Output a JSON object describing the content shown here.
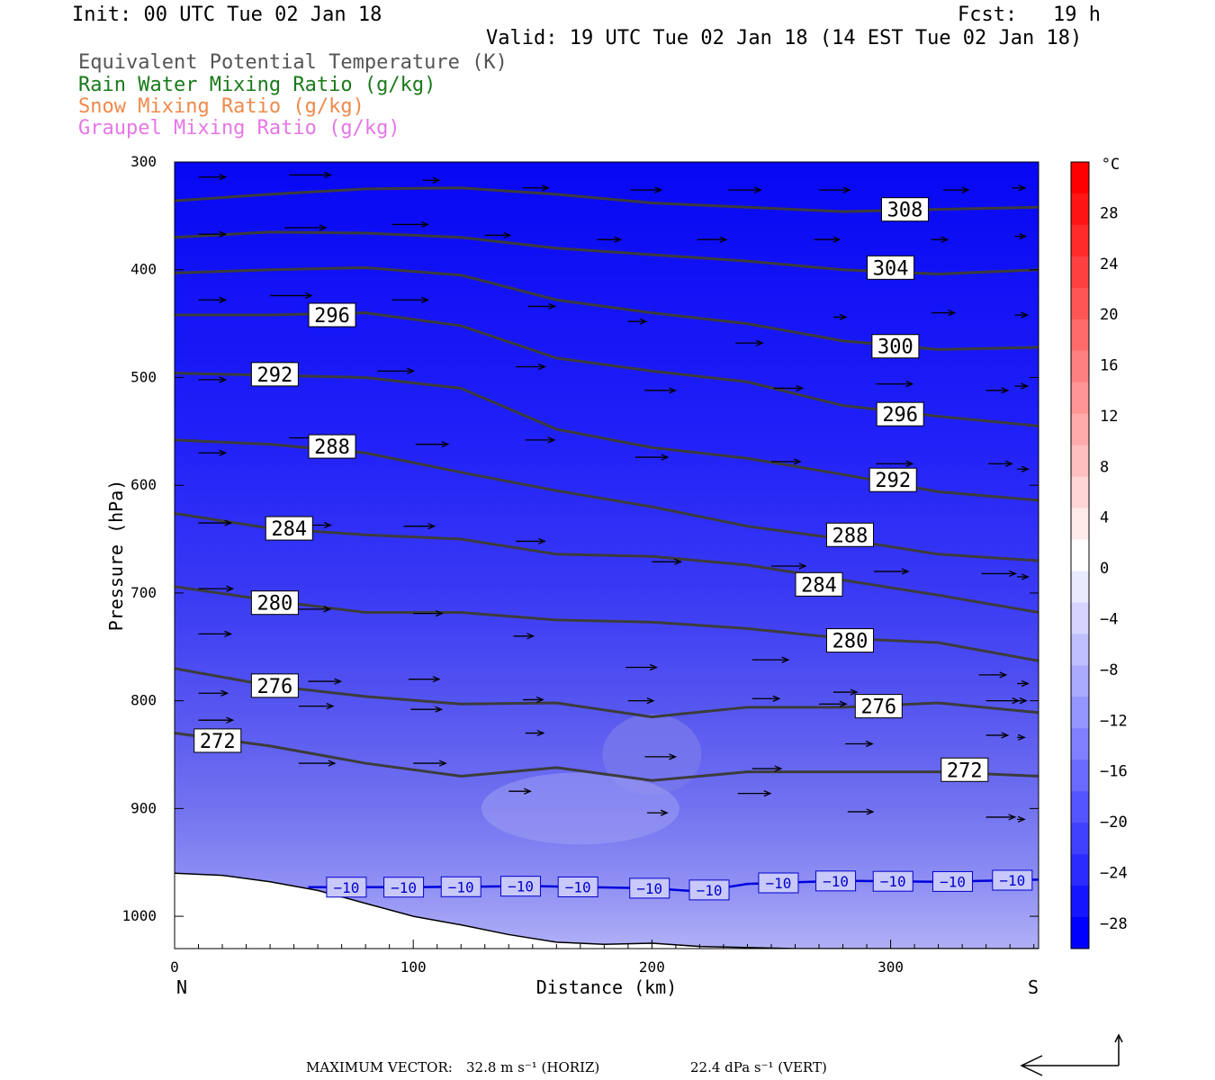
{
  "header": {
    "init": "Init: 00 UTC Tue 02 Jan 18",
    "fcst": "Fcst:   19 h",
    "valid": "Valid: 19 UTC Tue 02 Jan 18 (14 EST Tue 02 Jan 18)",
    "fields": [
      {
        "label": "Equivalent Potential Temperature (K)",
        "color": "#555555"
      },
      {
        "label": "Rain Water Mixing Ratio (g/kg)",
        "color": "#1a7a1a"
      },
      {
        "label": "Snow Mixing Ratio (g/kg)",
        "color": "#f08a4b"
      },
      {
        "label": "Graupel Mixing Ratio (g/kg)",
        "color": "#e676e6"
      }
    ]
  },
  "footer": {
    "max_vector_label": "MAXIMUM VECTOR:",
    "horiz": "32.8 m s⁻¹ (HORIZ)",
    "vert": "22.4 dPa s⁻¹ (VERT)"
  },
  "chart_data": {
    "type": "cross-section",
    "xlabel": "Distance (km)",
    "ylabel": "Pressure (hPa)",
    "xlim": [
      0,
      362
    ],
    "ylim": [
      1030,
      300
    ],
    "x_ticks": [
      0,
      100,
      200,
      300
    ],
    "y_ticks": [
      300,
      400,
      500,
      600,
      700,
      800,
      900,
      1000
    ],
    "x_end_labels": {
      "left": "N",
      "right": "S"
    },
    "colorbar": {
      "unit": "°C",
      "tick_labels": [
        "28",
        "24",
        "20",
        "16",
        "12",
        "8",
        "4",
        "0",
        "−4",
        "−8",
        "−12",
        "−16",
        "−20",
        "−24",
        "−28"
      ],
      "levels": [
        32,
        30,
        28,
        26,
        24,
        22,
        20,
        18,
        16,
        14,
        12,
        10,
        8,
        6,
        4,
        2,
        0,
        -2,
        -4,
        -6,
        -8,
        -10,
        -12,
        -14,
        -16,
        -18,
        -20,
        -22,
        -24,
        -26,
        -28,
        -30
      ],
      "colors": [
        "#ff0000",
        "#ff1515",
        "#ff2b2b",
        "#ff4040",
        "#ff5555",
        "#ff6a6a",
        "#ff8080",
        "#ff9595",
        "#ffaaaa",
        "#ffbfbf",
        "#ffd5d5",
        "#ffeaea",
        "#ffffff",
        "#eaeaff",
        "#d5d5ff",
        "#bfbfff",
        "#aaaaff",
        "#9595ff",
        "#8080ff",
        "#6a6aff",
        "#5555ff",
        "#4040ff",
        "#2b2bff",
        "#1515ff",
        "#0000ff"
      ]
    },
    "theta_e_contours": [
      {
        "value": 308,
        "points": [
          [
            0,
            336
          ],
          [
            40,
            330
          ],
          [
            80,
            325
          ],
          [
            120,
            324
          ],
          [
            160,
            330
          ],
          [
            200,
            338
          ],
          [
            240,
            342
          ],
          [
            280,
            346
          ],
          [
            320,
            344
          ],
          [
            362,
            342
          ]
        ]
      },
      {
        "value": 304,
        "points": [
          [
            0,
            370
          ],
          [
            40,
            365
          ],
          [
            80,
            366
          ],
          [
            120,
            370
          ],
          [
            160,
            380
          ],
          [
            200,
            386
          ],
          [
            240,
            392
          ],
          [
            280,
            400
          ],
          [
            320,
            404
          ],
          [
            362,
            400
          ]
        ]
      },
      {
        "value": 300,
        "points": [
          [
            0,
            403
          ],
          [
            40,
            400
          ],
          [
            80,
            398
          ],
          [
            120,
            405
          ],
          [
            160,
            428
          ],
          [
            200,
            440
          ],
          [
            240,
            450
          ],
          [
            280,
            466
          ],
          [
            320,
            474
          ],
          [
            362,
            472
          ]
        ]
      },
      {
        "value": 296,
        "points": [
          [
            0,
            442
          ],
          [
            40,
            442
          ],
          [
            80,
            440
          ],
          [
            120,
            452
          ],
          [
            160,
            482
          ],
          [
            200,
            494
          ],
          [
            240,
            504
          ],
          [
            280,
            526
          ],
          [
            320,
            536
          ],
          [
            362,
            545
          ]
        ]
      },
      {
        "value": 292,
        "points": [
          [
            0,
            496
          ],
          [
            40,
            498
          ],
          [
            80,
            500
          ],
          [
            120,
            510
          ],
          [
            160,
            548
          ],
          [
            200,
            565
          ],
          [
            240,
            575
          ],
          [
            280,
            590
          ],
          [
            320,
            606
          ],
          [
            362,
            614
          ]
        ]
      },
      {
        "value": 288,
        "points": [
          [
            0,
            558
          ],
          [
            40,
            562
          ],
          [
            80,
            570
          ],
          [
            120,
            588
          ],
          [
            160,
            605
          ],
          [
            200,
            620
          ],
          [
            240,
            638
          ],
          [
            280,
            650
          ],
          [
            320,
            664
          ],
          [
            362,
            670
          ]
        ]
      },
      {
        "value": 284,
        "points": [
          [
            0,
            626
          ],
          [
            40,
            640
          ],
          [
            80,
            646
          ],
          [
            120,
            650
          ],
          [
            160,
            664
          ],
          [
            200,
            666
          ],
          [
            240,
            674
          ],
          [
            280,
            688
          ],
          [
            320,
            702
          ],
          [
            362,
            718
          ]
        ]
      },
      {
        "value": 280,
        "points": [
          [
            0,
            694
          ],
          [
            40,
            707
          ],
          [
            80,
            718
          ],
          [
            120,
            718
          ],
          [
            160,
            725
          ],
          [
            200,
            727
          ],
          [
            240,
            733
          ],
          [
            280,
            742
          ],
          [
            320,
            746
          ],
          [
            362,
            763
          ]
        ]
      },
      {
        "value": 276,
        "points": [
          [
            0,
            770
          ],
          [
            40,
            786
          ],
          [
            80,
            796
          ],
          [
            120,
            803
          ],
          [
            160,
            802
          ],
          [
            200,
            815
          ],
          [
            240,
            806
          ],
          [
            280,
            806
          ],
          [
            320,
            802
          ],
          [
            362,
            811
          ]
        ]
      },
      {
        "value": 272,
        "points": [
          [
            0,
            830
          ],
          [
            40,
            842
          ],
          [
            80,
            858
          ],
          [
            120,
            870
          ],
          [
            160,
            862
          ],
          [
            200,
            874
          ],
          [
            240,
            866
          ],
          [
            280,
            866
          ],
          [
            320,
            866
          ],
          [
            362,
            870
          ]
        ]
      }
    ],
    "theta_e_label_positions": [
      {
        "value": 308,
        "at": [
          306,
          344
        ]
      },
      {
        "value": 304,
        "at": [
          300,
          398
        ]
      },
      {
        "value": 300,
        "at": [
          302,
          471
        ]
      },
      {
        "value": 296,
        "at": [
          304,
          534
        ]
      },
      {
        "value": 296,
        "at": [
          66,
          442
        ]
      },
      {
        "value": 292,
        "at": [
          301,
          595
        ]
      },
      {
        "value": 292,
        "at": [
          42,
          497
        ]
      },
      {
        "value": 288,
        "at": [
          283,
          646
        ]
      },
      {
        "value": 288,
        "at": [
          66,
          564
        ]
      },
      {
        "value": 284,
        "at": [
          270,
          692
        ]
      },
      {
        "value": 284,
        "at": [
          48,
          640
        ]
      },
      {
        "value": 280,
        "at": [
          283,
          744
        ]
      },
      {
        "value": 280,
        "at": [
          42,
          709
        ]
      },
      {
        "value": 276,
        "at": [
          295,
          805
        ]
      },
      {
        "value": 276,
        "at": [
          42,
          786
        ]
      },
      {
        "value": 272,
        "at": [
          331,
          864
        ]
      },
      {
        "value": 272,
        "at": [
          18,
          837
        ]
      }
    ],
    "isotherm_minus10": {
      "value": -10,
      "label": "−10",
      "color": "#0000dd",
      "points": [
        [
          56,
          973
        ],
        [
          100,
          973
        ],
        [
          150,
          972
        ],
        [
          200,
          974
        ],
        [
          220,
          977
        ],
        [
          240,
          970
        ],
        [
          280,
          967
        ],
        [
          320,
          968
        ],
        [
          362,
          966
        ]
      ],
      "label_x": [
        72,
        96,
        120,
        145,
        169,
        199,
        224,
        253,
        277,
        301,
        326,
        351
      ]
    },
    "terrain": {
      "points": [
        [
          0,
          960
        ],
        [
          20,
          962
        ],
        [
          40,
          968
        ],
        [
          60,
          976
        ],
        [
          80,
          988
        ],
        [
          100,
          1000
        ],
        [
          120,
          1008
        ],
        [
          140,
          1017
        ],
        [
          160,
          1024
        ],
        [
          180,
          1026
        ],
        [
          200,
          1025
        ],
        [
          220,
          1028
        ],
        [
          260,
          1030
        ],
        [
          300,
          1030
        ],
        [
          362,
          1030
        ]
      ]
    },
    "wind_vectors": [
      [
        10,
        314,
        30
      ],
      [
        48,
        312,
        46
      ],
      [
        104,
        317,
        18
      ],
      [
        146,
        324,
        28
      ],
      [
        191,
        326,
        34
      ],
      [
        232,
        326,
        36
      ],
      [
        270,
        326,
        34
      ],
      [
        322,
        326,
        28
      ],
      [
        351,
        324,
        14
      ],
      [
        10,
        367,
        30
      ],
      [
        46,
        361,
        46
      ],
      [
        91,
        358,
        40
      ],
      [
        130,
        368,
        28
      ],
      [
        177,
        372,
        26
      ],
      [
        219,
        372,
        32
      ],
      [
        268,
        372,
        28
      ],
      [
        317,
        372,
        18
      ],
      [
        352,
        369,
        12
      ],
      [
        10,
        428,
        30
      ],
      [
        40,
        424,
        46
      ],
      [
        91,
        428,
        40
      ],
      [
        148,
        434,
        30
      ],
      [
        190,
        448,
        20
      ],
      [
        235,
        468,
        30
      ],
      [
        276,
        444,
        14
      ],
      [
        317,
        440,
        26
      ],
      [
        352,
        442,
        14
      ],
      [
        10,
        502,
        30
      ],
      [
        36,
        488,
        42
      ],
      [
        85,
        494,
        40
      ],
      [
        143,
        490,
        32
      ],
      [
        197,
        512,
        34
      ],
      [
        251,
        510,
        32
      ],
      [
        294,
        506,
        40
      ],
      [
        340,
        512,
        24
      ],
      [
        352,
        508,
        14
      ],
      [
        10,
        570,
        30
      ],
      [
        48,
        556,
        40
      ],
      [
        101,
        562,
        36
      ],
      [
        147,
        558,
        32
      ],
      [
        193,
        574,
        36
      ],
      [
        250,
        578,
        32
      ],
      [
        294,
        580,
        40
      ],
      [
        341,
        580,
        26
      ],
      [
        353,
        585,
        12
      ],
      [
        10,
        635,
        36
      ],
      [
        48,
        637,
        46
      ],
      [
        96,
        638,
        34
      ],
      [
        143,
        652,
        32
      ],
      [
        200,
        671,
        32
      ],
      [
        250,
        675,
        38
      ],
      [
        293,
        680,
        38
      ],
      [
        338,
        682,
        38
      ],
      [
        353,
        685,
        12
      ],
      [
        10,
        696,
        38
      ],
      [
        50,
        715,
        40
      ],
      [
        100,
        719,
        32
      ],
      [
        142,
        740,
        22
      ],
      [
        189,
        769,
        34
      ],
      [
        242,
        762,
        40
      ],
      [
        270,
        803,
        30
      ],
      [
        337,
        776,
        30
      ],
      [
        353,
        784,
        12
      ],
      [
        10,
        738,
        36
      ],
      [
        56,
        782,
        36
      ],
      [
        98,
        780,
        34
      ],
      [
        146,
        799,
        22
      ],
      [
        190,
        800,
        28
      ],
      [
        242,
        798,
        30
      ],
      [
        276,
        792,
        26
      ],
      [
        340,
        800,
        36
      ],
      [
        353,
        800,
        10
      ],
      [
        10,
        793,
        32
      ],
      [
        52,
        805,
        38
      ],
      [
        99,
        808,
        34
      ],
      [
        147,
        830,
        20
      ],
      [
        197,
        852,
        34
      ],
      [
        242,
        863,
        32
      ],
      [
        281,
        840,
        30
      ],
      [
        340,
        832,
        24
      ],
      [
        353,
        834,
        8
      ],
      [
        10,
        818,
        38
      ],
      [
        52,
        858,
        40
      ],
      [
        100,
        858,
        36
      ],
      [
        140,
        884,
        24
      ],
      [
        198,
        904,
        22
      ],
      [
        236,
        886,
        36
      ],
      [
        282,
        903,
        28
      ],
      [
        340,
        908,
        32
      ],
      [
        353,
        910,
        8
      ]
    ],
    "vector_legend": {
      "horiz_arrow": "left",
      "vert_arrow": "up"
    }
  }
}
